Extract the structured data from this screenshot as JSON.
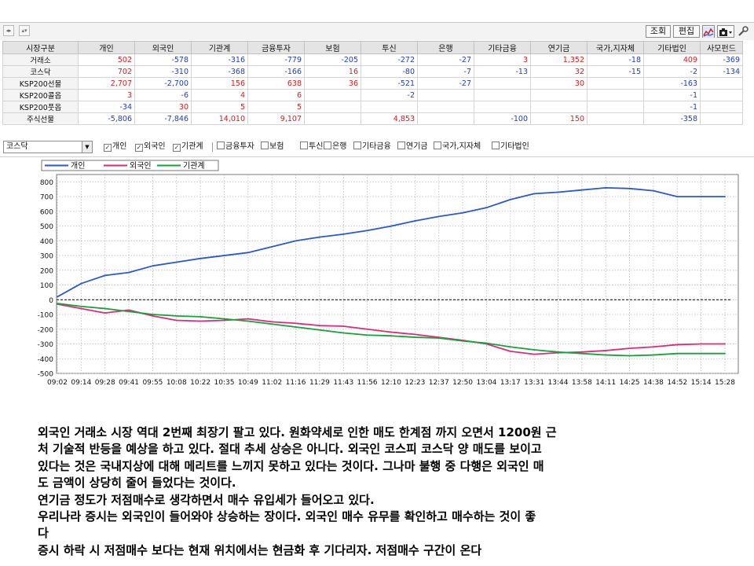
{
  "toolbar": {
    "query_label": "조회",
    "edit_label": "편집",
    "nav_prev": "◂▸",
    "nav_updown": "▴▾"
  },
  "grid": {
    "columns": [
      "시장구분",
      "개인",
      "외국인",
      "기관계",
      "금융투자",
      "보험",
      "투신",
      "은행",
      "기타금융",
      "연기금",
      "국가,지자체",
      "기타법인",
      "사모펀드"
    ],
    "rows": [
      {
        "name": "거래소",
        "values": [
          "502",
          "-578",
          "-316",
          "-779",
          "-205",
          "-272",
          "-27",
          "3",
          "1,352",
          "-18",
          "409",
          "-369"
        ]
      },
      {
        "name": "코스닥",
        "values": [
          "702",
          "-310",
          "-368",
          "-166",
          "16",
          "-80",
          "-7",
          "-13",
          "32",
          "-15",
          "-2",
          "-134"
        ]
      },
      {
        "name": "KSP200선물",
        "values": [
          "2,707",
          "-2,700",
          "156",
          "638",
          "36",
          "-521",
          "-27",
          "",
          "30",
          "",
          "-163",
          ""
        ]
      },
      {
        "name": "KSP200콜옵",
        "values": [
          "3",
          "-6",
          "4",
          "6",
          "",
          "-2",
          "",
          "",
          "",
          "",
          "-1",
          ""
        ]
      },
      {
        "name": "KSP200풋옵",
        "values": [
          "-34",
          "30",
          "5",
          "5",
          "",
          "",
          "",
          "",
          "",
          "",
          "-1",
          ""
        ]
      },
      {
        "name": "주식선물",
        "values": [
          "-5,806",
          "-7,846",
          "14,010",
          "9,107",
          "",
          "4,853",
          "",
          "-100",
          "150",
          "",
          "-358",
          ""
        ]
      }
    ]
  },
  "filter": {
    "selected_market": "코스닥",
    "checkboxes": [
      {
        "label": "개인",
        "checked": true
      },
      {
        "label": "외국인",
        "checked": true
      },
      {
        "label": "기관계",
        "checked": true
      },
      {
        "label": "금융투자",
        "checked": false
      },
      {
        "label": "보험",
        "checked": false
      },
      {
        "label": "투신",
        "checked": false
      },
      {
        "label": "은행",
        "checked": false
      },
      {
        "label": "기타금융",
        "checked": false
      },
      {
        "label": "연기금",
        "checked": false
      },
      {
        "label": "국가,지자체",
        "checked": false
      },
      {
        "label": "기타법인",
        "checked": false
      }
    ]
  },
  "colors": {
    "individual": "#2a57d6",
    "foreign": "#e2287a",
    "institution": "#13a33a",
    "positive": "#e0181c",
    "negative": "#1f3bd1"
  },
  "chart_data": {
    "type": "line",
    "grid": true,
    "legend_position": "top-left",
    "ylim": [
      -500,
      850
    ],
    "yticks": [
      800,
      700,
      600,
      500,
      400,
      300,
      200,
      100,
      0,
      -100,
      -200,
      -300,
      -400,
      -500
    ],
    "xticks": [
      "09:02",
      "09:14",
      "09:28",
      "09:41",
      "09:55",
      "10:08",
      "10:22",
      "10:35",
      "10:49",
      "11:02",
      "11:16",
      "11:29",
      "11:43",
      "11:56",
      "12:10",
      "12:23",
      "12:37",
      "12:50",
      "13:04",
      "13:17",
      "13:31",
      "13:44",
      "13:58",
      "14:11",
      "14:25",
      "14:38",
      "14:52",
      "15:14",
      "15:28"
    ],
    "series": [
      {
        "name": "개인",
        "values": [
          20,
          110,
          165,
          185,
          230,
          255,
          280,
          300,
          320,
          360,
          400,
          425,
          445,
          470,
          500,
          535,
          565,
          590,
          625,
          680,
          720,
          730,
          745,
          760,
          755,
          740,
          700,
          700,
          700
        ]
      },
      {
        "name": "외국인",
        "values": [
          -30,
          -60,
          -90,
          -70,
          -110,
          -140,
          -145,
          -140,
          -130,
          -150,
          -160,
          -175,
          -180,
          -200,
          -220,
          -235,
          -255,
          -275,
          -300,
          -350,
          -370,
          -360,
          -355,
          -345,
          -330,
          -320,
          -305,
          -300,
          -300
        ]
      },
      {
        "name": "기관계",
        "values": [
          -25,
          -45,
          -60,
          -80,
          -100,
          -110,
          -115,
          -130,
          -145,
          -165,
          -185,
          -205,
          -225,
          -240,
          -245,
          -255,
          -260,
          -280,
          -295,
          -320,
          -340,
          -355,
          -365,
          -375,
          -380,
          -375,
          -365,
          -365,
          -365
        ]
      }
    ]
  },
  "text_body": [
    "외국인 거래소 시장 역대 2번째 최장기 팔고 있다. 원화약세로 인한 매도 한계점 까지 오면서 1200원 근",
    "처 기술적 반등을 예상을 하고 있다. 절대 추세 상승은 아니다. 외국인 코스피 코스닥 양 매도를 보이고",
    "있다는 것은 국내지상에 대해 메리트를 느끼지 못하고 있다는 것이다. 그나마 불행 중 다행은 외국인 매",
    "도 금액이 상당히 줄어 들었다는 것이다.",
    "연기금 정도가 저점매수로 생각하면서 매수 유입세가 들어오고 있다.",
    "우리나라 증시는 외국인이 들어와야 상승하는 장이다. 외국인 매수 유무를 확인하고 매수하는 것이 좋",
    "다",
    "증시 하락 시 저점매수 보다는 현재 위치에서는 현금화 후 기다리자. 저점매수 구간이 온다"
  ]
}
